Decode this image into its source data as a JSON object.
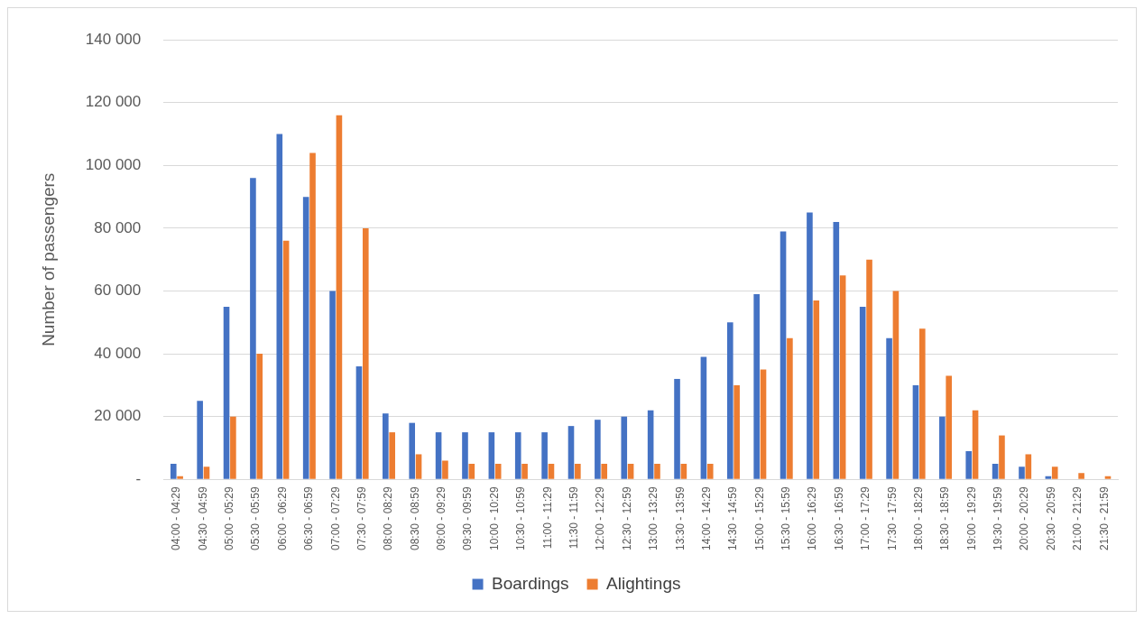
{
  "chart_data": {
    "type": "bar",
    "ylabel": "Number of passengers",
    "categories": [
      "04:00 - 04:29",
      "04:30 - 04:59",
      "05:00 - 05:29",
      "05:30 - 05:59",
      "06:00 - 06:29",
      "06:30 - 06:59",
      "07:00 - 07:29",
      "07:30 - 07:59",
      "08:00 - 08:29",
      "08:30 - 08:59",
      "09:00 - 09:29",
      "09:30 - 09:59",
      "10:00 - 10:29",
      "10:30 - 10:59",
      "11:00 - 11:29",
      "11:30 - 11:59",
      "12:00 - 12:29",
      "12:30 - 12:59",
      "13:00 - 13:29",
      "13:30 - 13:59",
      "14:00 - 14:29",
      "14:30 - 14:59",
      "15:00 - 15:29",
      "15:30 - 15:59",
      "16:00 - 16:29",
      "16:30 - 16:59",
      "17:00 - 17:29",
      "17:30 - 17:59",
      "18:00 - 18:29",
      "18:30 - 18:59",
      "19:00 - 19:29",
      "19:30 - 19:59",
      "20:00 - 20:29",
      "20:30 - 20:59",
      "21:00 - 21:29",
      "21:30 - 21:59"
    ],
    "series": [
      {
        "name": "Boardings",
        "color": "#4472c4",
        "values": [
          5000,
          25000,
          55000,
          96000,
          110000,
          90000,
          60000,
          36000,
          21000,
          18000,
          15000,
          15000,
          15000,
          15000,
          15000,
          17000,
          19000,
          20000,
          22000,
          32000,
          39000,
          50000,
          59000,
          79000,
          85000,
          82000,
          55000,
          45000,
          30000,
          20000,
          9000,
          5000,
          4000,
          1000,
          0,
          0
        ]
      },
      {
        "name": "Alightings",
        "color": "#ed7d31",
        "values": [
          1000,
          4000,
          20000,
          40000,
          76000,
          104000,
          116000,
          80000,
          15000,
          8000,
          6000,
          5000,
          5000,
          5000,
          5000,
          5000,
          5000,
          5000,
          5000,
          5000,
          5000,
          30000,
          35000,
          45000,
          57000,
          65000,
          70000,
          60000,
          48000,
          33000,
          22000,
          14000,
          8000,
          4000,
          2000,
          1000
        ]
      }
    ],
    "ylim": [
      0,
      140000
    ],
    "yticks": [
      {
        "value": 0,
        "label": "-"
      },
      {
        "value": 20000,
        "label": "20 000"
      },
      {
        "value": 40000,
        "label": "40 000"
      },
      {
        "value": 60000,
        "label": "60 000"
      },
      {
        "value": 80000,
        "label": "80 000"
      },
      {
        "value": 100000,
        "label": "100 000"
      },
      {
        "value": 120000,
        "label": "120 000"
      },
      {
        "value": 140000,
        "label": "140 000"
      }
    ],
    "grid": "y",
    "legend": "bottom"
  }
}
